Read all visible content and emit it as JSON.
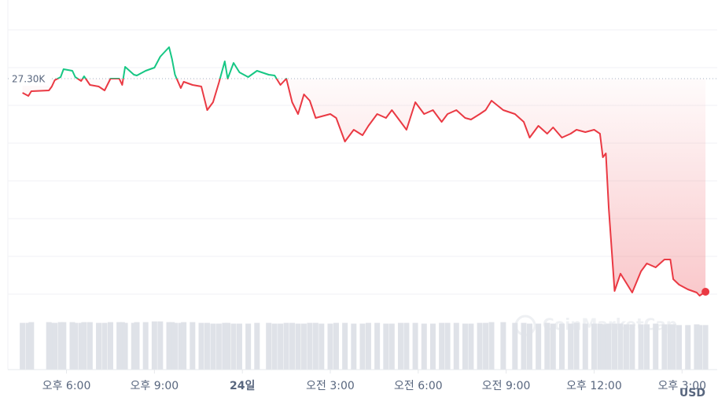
{
  "chart_data": {
    "type": "line",
    "baseline": {
      "value": 27300,
      "label": "27.30K"
    },
    "x": [
      16.5,
      16.7,
      16.8,
      17.4,
      17.5,
      17.6,
      17.8,
      17.9,
      18.2,
      18.3,
      18.5,
      18.6,
      18.8,
      19.1,
      19.3,
      19.5,
      19.8,
      19.9,
      20.0,
      20.3,
      20.4,
      20.7,
      21.0,
      21.2,
      21.5,
      21.6,
      21.7,
      21.9,
      22.0,
      22.3,
      22.6,
      22.8,
      23.0,
      23.2,
      23.4,
      23.5,
      23.7,
      23.9,
      24.2,
      24.5,
      24.9,
      25.1,
      25.3,
      25.5,
      25.7,
      25.9,
      26.1,
      26.3,
      26.5,
      26.7,
      27.0,
      27.2,
      27.5,
      27.8,
      28.1,
      28.3,
      28.6,
      28.9,
      29.1,
      29.4,
      29.6,
      29.9,
      30.2,
      30.5,
      30.8,
      31.0,
      31.3,
      31.6,
      31.8,
      32.1,
      32.3,
      32.5,
      32.9,
      33.3,
      33.6,
      33.8,
      34.1,
      34.4,
      34.6,
      34.9,
      35.2,
      35.4,
      35.7,
      36.0,
      36.2,
      36.3,
      36.4,
      36.5,
      36.7,
      36.9,
      37.1,
      37.3,
      37.6,
      37.8,
      38.1,
      38.4,
      38.6,
      38.7,
      38.9,
      39.2,
      39.5,
      39.6,
      39.8
    ],
    "series": [
      {
        "name": "price",
        "colors": {
          "above": "#16c784",
          "below": "#ea3943"
        },
        "values": [
          27255,
          27245,
          27260,
          27262.5,
          27275,
          27295,
          27305,
          27330,
          27325,
          27305,
          27292.5,
          27307.5,
          27280,
          27275,
          27262.5,
          27300,
          27300,
          27280,
          27337.5,
          27312.5,
          27310,
          27325,
          27335,
          27370,
          27400,
          27362.5,
          27312.5,
          27270,
          27290,
          27280,
          27275,
          27200,
          27225,
          27287.5,
          27355,
          27300,
          27350,
          27320,
          27305,
          27325,
          27312.5,
          27310,
          27280,
          27300,
          27225,
          27187.5,
          27250,
          27230,
          27175,
          27180,
          27187.5,
          27175,
          27100,
          27137.5,
          27120,
          27150,
          27187.5,
          27175,
          27200,
          27162.5,
          27137.5,
          27225,
          27187.5,
          27200,
          27162.5,
          27187.5,
          27200,
          27175,
          27170,
          27187.5,
          27200,
          27230,
          27200,
          27187.5,
          27162.5,
          27112.5,
          27150,
          27125,
          27145,
          27112.5,
          27125,
          27137.5,
          27130,
          27137.5,
          27125,
          27050,
          27062.5,
          26887.5,
          26625,
          26680,
          26650,
          26620,
          26687.5,
          26712.5,
          26700,
          26725,
          26725,
          26662.5,
          26645,
          26630,
          26620,
          26610,
          26622.5
        ]
      },
      {
        "name": "volume",
        "color": "#dfe2e8",
        "values": [
          64,
          64,
          65,
          65,
          64,
          64,
          65,
          65,
          65,
          64,
          64,
          65,
          65,
          64,
          64,
          65,
          65,
          65,
          64,
          64,
          65,
          65,
          66,
          66,
          65,
          65,
          64,
          64,
          65,
          65,
          64,
          64,
          63,
          63,
          64,
          64,
          63,
          63,
          63,
          64,
          64,
          63,
          63,
          64,
          64,
          63,
          63,
          64,
          64,
          63,
          63,
          64,
          64,
          63,
          63,
          64,
          64,
          63,
          63,
          64,
          64,
          64,
          63,
          63,
          64,
          64,
          64,
          63,
          63,
          64,
          64,
          65,
          65,
          64,
          64,
          63,
          63,
          64,
          63,
          63,
          63,
          64,
          63,
          63,
          63,
          62,
          62,
          63,
          63,
          63,
          62,
          62,
          62,
          62,
          63,
          62,
          62,
          62,
          61,
          61,
          62,
          61,
          61
        ]
      }
    ],
    "xlim": [
      16,
      40.2
    ],
    "ylim": [
      26550,
      27550
    ],
    "volume_lim": [
      0,
      70
    ],
    "xticks": [
      {
        "value": 18,
        "label": "오후 6:00"
      },
      {
        "value": 21,
        "label": "오후 9:00"
      },
      {
        "value": 24,
        "label": "24일"
      },
      {
        "value": 27,
        "label": "오전 3:00"
      },
      {
        "value": 30,
        "label": "오전 6:00"
      },
      {
        "value": 33,
        "label": "오전 9:00"
      },
      {
        "value": 36,
        "label": "오후 12:00"
      },
      {
        "value": 39,
        "label": "오후 3:00"
      }
    ],
    "currency": "USD",
    "watermark": "CoinMarketCap"
  }
}
